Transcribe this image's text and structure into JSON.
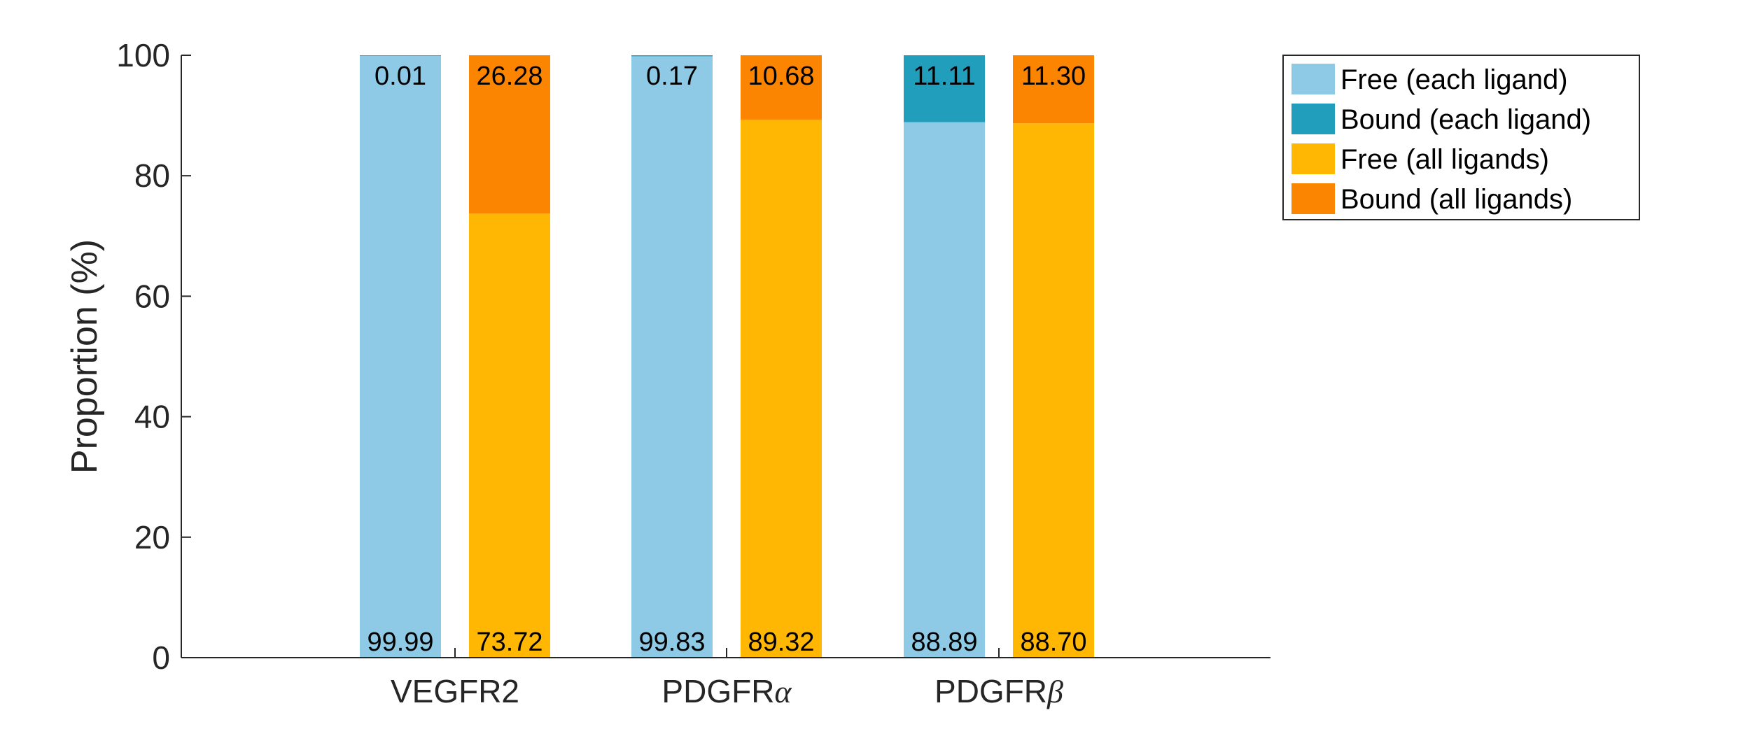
{
  "chart_data": {
    "type": "bar",
    "stacked": true,
    "categories": [
      "VEGFR2",
      "PDGFRα",
      "PDGFRβ"
    ],
    "category_parts": [
      {
        "base": "VEGFR2",
        "greek": ""
      },
      {
        "base": "PDGFR",
        "greek": "α"
      },
      {
        "base": "PDGFR",
        "greek": "β"
      }
    ],
    "groups": [
      {
        "name": "each ligand",
        "values_bottom": [
          99.99,
          99.83,
          88.89
        ],
        "values_top": [
          0.01,
          0.17,
          11.11
        ],
        "labels_bottom": [
          "99.99",
          "99.83",
          "88.89"
        ],
        "labels_top": [
          "0.01",
          "0.17",
          "11.11"
        ]
      },
      {
        "name": "all ligands",
        "values_bottom": [
          73.72,
          89.32,
          88.7
        ],
        "values_top": [
          26.28,
          10.68,
          11.3
        ],
        "labels_bottom": [
          "73.72",
          "89.32",
          "88.70"
        ],
        "labels_top": [
          "26.28",
          "10.68",
          "11.30"
        ]
      }
    ],
    "legend": [
      {
        "label": "Free (each ligand)",
        "color": "#8ecae6"
      },
      {
        "label": "Bound (each ligand)",
        "color": "#219ebc"
      },
      {
        "label": "Free (all ligands)",
        "color": "#ffb703"
      },
      {
        "label": "Bound (all ligands)",
        "color": "#fb8500"
      }
    ],
    "legend_placement": "top-right",
    "ylabel": "Proportion (%)",
    "xlabel": "",
    "title": "",
    "ylim": [
      0,
      100
    ],
    "yticks": [
      0,
      20,
      40,
      60,
      80,
      100
    ],
    "grid": false
  }
}
